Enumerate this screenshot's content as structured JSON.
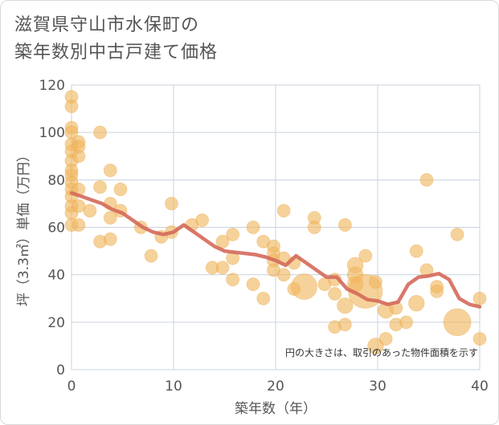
{
  "chart_data": {
    "type": "scatter",
    "title": "滋賀県守山市水保町の\n築年数別中古戸建て価格",
    "xlabel": "築年数（年）",
    "ylabel": "坪（3.3㎡）単価（万円）",
    "xlim": [
      0,
      40
    ],
    "ylim": [
      0,
      120
    ],
    "xticks": [
      0,
      10,
      20,
      30,
      40
    ],
    "yticks": [
      0,
      20,
      40,
      60,
      80,
      100,
      120
    ],
    "grid": true,
    "note": "円の大きさは、取引のあった物件面積を示す",
    "colors": {
      "bubble": "#f0b65e",
      "trend": "#d4695a",
      "grid": "#c9d3de",
      "text": "#555555"
    },
    "points": [
      {
        "x": 0,
        "y": 115,
        "s": 2
      },
      {
        "x": 0,
        "y": 111,
        "s": 2
      },
      {
        "x": 0,
        "y": 102,
        "s": 2
      },
      {
        "x": 0,
        "y": 100,
        "s": 2
      },
      {
        "x": 0,
        "y": 95,
        "s": 2
      },
      {
        "x": 0,
        "y": 92,
        "s": 2
      },
      {
        "x": 0,
        "y": 88,
        "s": 2
      },
      {
        "x": 0,
        "y": 84,
        "s": 2
      },
      {
        "x": 0,
        "y": 82,
        "s": 2
      },
      {
        "x": 0,
        "y": 79,
        "s": 2
      },
      {
        "x": 0,
        "y": 76,
        "s": 2
      },
      {
        "x": 0,
        "y": 73,
        "s": 2
      },
      {
        "x": 0,
        "y": 69,
        "s": 2
      },
      {
        "x": 0,
        "y": 66,
        "s": 2
      },
      {
        "x": 0,
        "y": 61,
        "s": 2
      },
      {
        "x": 0.7,
        "y": 96,
        "s": 2
      },
      {
        "x": 0.7,
        "y": 94,
        "s": 2
      },
      {
        "x": 0.7,
        "y": 90,
        "s": 2
      },
      {
        "x": 0.7,
        "y": 76,
        "s": 2
      },
      {
        "x": 0.7,
        "y": 69,
        "s": 2
      },
      {
        "x": 0.7,
        "y": 61,
        "s": 2
      },
      {
        "x": 1.8,
        "y": 67,
        "s": 2
      },
      {
        "x": 2.8,
        "y": 100,
        "s": 2
      },
      {
        "x": 2.8,
        "y": 77,
        "s": 2
      },
      {
        "x": 2.8,
        "y": 54,
        "s": 2
      },
      {
        "x": 3.8,
        "y": 84,
        "s": 2
      },
      {
        "x": 3.8,
        "y": 70,
        "s": 2
      },
      {
        "x": 3.8,
        "y": 64,
        "s": 2
      },
      {
        "x": 3.8,
        "y": 55,
        "s": 2
      },
      {
        "x": 4.8,
        "y": 76,
        "s": 2
      },
      {
        "x": 4.8,
        "y": 67,
        "s": 2
      },
      {
        "x": 6.8,
        "y": 60,
        "s": 2
      },
      {
        "x": 7.8,
        "y": 48,
        "s": 2
      },
      {
        "x": 8.8,
        "y": 56,
        "s": 2
      },
      {
        "x": 9.8,
        "y": 70,
        "s": 2
      },
      {
        "x": 9.8,
        "y": 58,
        "s": 2
      },
      {
        "x": 11.8,
        "y": 61,
        "s": 2
      },
      {
        "x": 12.8,
        "y": 63,
        "s": 2
      },
      {
        "x": 13.8,
        "y": 43,
        "s": 2
      },
      {
        "x": 14.8,
        "y": 54,
        "s": 2
      },
      {
        "x": 14.8,
        "y": 43,
        "s": 2
      },
      {
        "x": 15.8,
        "y": 57,
        "s": 2
      },
      {
        "x": 15.8,
        "y": 47,
        "s": 2
      },
      {
        "x": 15.8,
        "y": 38,
        "s": 2
      },
      {
        "x": 17.8,
        "y": 60,
        "s": 2
      },
      {
        "x": 17.8,
        "y": 36,
        "s": 2
      },
      {
        "x": 18.8,
        "y": 54,
        "s": 2
      },
      {
        "x": 18.8,
        "y": 30,
        "s": 2
      },
      {
        "x": 19.8,
        "y": 52,
        "s": 2
      },
      {
        "x": 19.8,
        "y": 49,
        "s": 2
      },
      {
        "x": 19.8,
        "y": 46,
        "s": 2
      },
      {
        "x": 19.8,
        "y": 42,
        "s": 2
      },
      {
        "x": 20.8,
        "y": 67,
        "s": 2
      },
      {
        "x": 20.8,
        "y": 47,
        "s": 2
      },
      {
        "x": 20.8,
        "y": 40,
        "s": 2
      },
      {
        "x": 21.8,
        "y": 45,
        "s": 2
      },
      {
        "x": 21.8,
        "y": 34,
        "s": 2
      },
      {
        "x": 22.8,
        "y": 35,
        "s": 8
      },
      {
        "x": 23.8,
        "y": 64,
        "s": 2
      },
      {
        "x": 23.8,
        "y": 60,
        "s": 2
      },
      {
        "x": 24.8,
        "y": 36,
        "s": 2
      },
      {
        "x": 25.8,
        "y": 38,
        "s": 2
      },
      {
        "x": 25.8,
        "y": 32,
        "s": 2
      },
      {
        "x": 25.8,
        "y": 18,
        "s": 2
      },
      {
        "x": 26.8,
        "y": 61,
        "s": 2
      },
      {
        "x": 26.8,
        "y": 27,
        "s": 3
      },
      {
        "x": 26.8,
        "y": 19,
        "s": 2
      },
      {
        "x": 27.8,
        "y": 44,
        "s": 3
      },
      {
        "x": 27.8,
        "y": 40,
        "s": 3
      },
      {
        "x": 27.8,
        "y": 36,
        "s": 3
      },
      {
        "x": 28.8,
        "y": 48,
        "s": 2
      },
      {
        "x": 28.8,
        "y": 33,
        "s": 14
      },
      {
        "x": 29.8,
        "y": 37,
        "s": 2
      },
      {
        "x": 29.8,
        "y": 10,
        "s": 3
      },
      {
        "x": 30.8,
        "y": 25,
        "s": 3
      },
      {
        "x": 30.8,
        "y": 13,
        "s": 2
      },
      {
        "x": 31.8,
        "y": 26,
        "s": 2
      },
      {
        "x": 31.8,
        "y": 19,
        "s": 2
      },
      {
        "x": 32.8,
        "y": 20,
        "s": 2
      },
      {
        "x": 33.8,
        "y": 50,
        "s": 2
      },
      {
        "x": 33.8,
        "y": 28,
        "s": 3
      },
      {
        "x": 34.8,
        "y": 80,
        "s": 2
      },
      {
        "x": 34.8,
        "y": 42,
        "s": 2
      },
      {
        "x": 35.8,
        "y": 35,
        "s": 2
      },
      {
        "x": 35.8,
        "y": 33,
        "s": 2
      },
      {
        "x": 37.8,
        "y": 57,
        "s": 2
      },
      {
        "x": 37.8,
        "y": 20,
        "s": 9
      },
      {
        "x": 40,
        "y": 30,
        "s": 2
      },
      {
        "x": 40,
        "y": 13,
        "s": 2
      }
    ],
    "trend": {
      "x": [
        0,
        1,
        2,
        3,
        4,
        5,
        6,
        7,
        8,
        9,
        10,
        11,
        12,
        13,
        14,
        15,
        16,
        17,
        18,
        19,
        20,
        21,
        22,
        23,
        24,
        25,
        26,
        27,
        28,
        29,
        30,
        31,
        32,
        33,
        34,
        35,
        36,
        37,
        38,
        39,
        40
      ],
      "y": [
        74.5,
        73,
        71.5,
        70,
        67.5,
        66,
        63,
        60,
        58,
        57,
        58,
        61,
        58,
        55,
        52,
        50,
        49.5,
        49,
        48.5,
        47.5,
        46,
        44,
        48,
        45,
        42,
        39,
        39,
        34,
        32,
        29.5,
        29,
        27.5,
        28.5,
        36,
        39,
        39.5,
        40.5,
        38,
        30,
        27.5,
        26.5
      ]
    }
  }
}
